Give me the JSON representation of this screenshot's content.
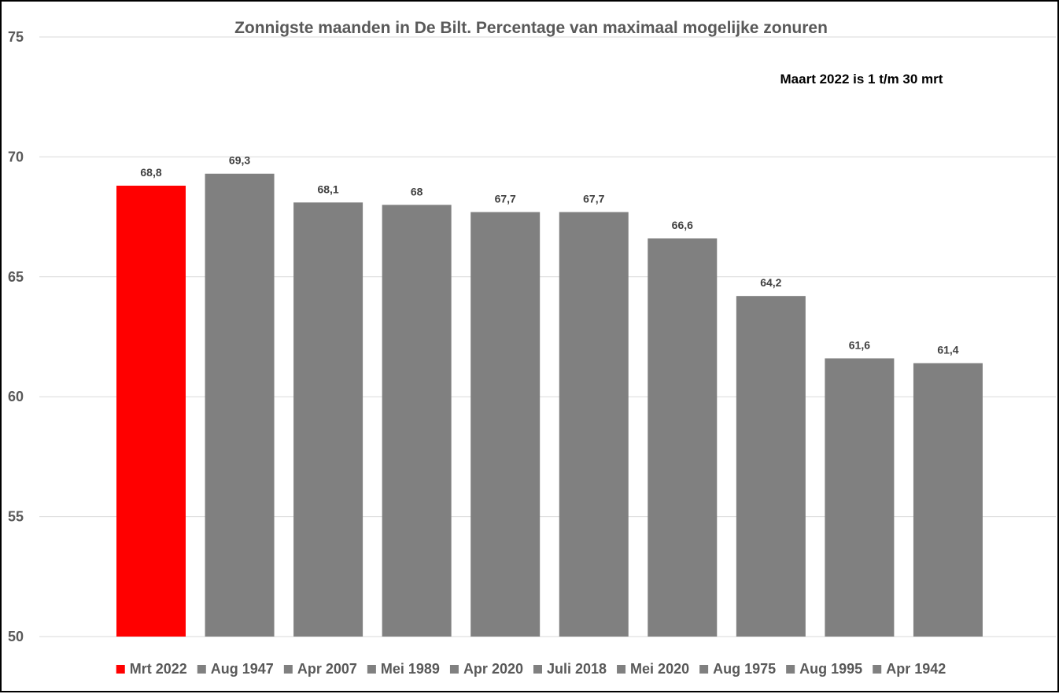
{
  "chart_data": {
    "type": "bar",
    "title": "Zonnigste maanden in De Bilt. Percentage van maximaal mogelijke zonuren",
    "annotation": "Maart 2022 is 1 t/m 30 mrt",
    "xlabel": "",
    "ylabel": "",
    "ylim": [
      50,
      75
    ],
    "yticks": [
      50,
      55,
      60,
      65,
      70,
      75
    ],
    "grid": true,
    "legend_position": "bottom",
    "categories": [
      "Mrt 2022",
      "Aug 1947",
      "Apr 2007",
      "Mei 1989",
      "Apr 2020",
      "Juli 2018",
      "Mei 2020",
      "Aug 1975",
      "Aug 1995",
      "Apr 1942"
    ],
    "values": [
      68.8,
      69.3,
      68.1,
      68,
      67.7,
      67.7,
      66.6,
      64.2,
      61.6,
      61.4
    ],
    "value_labels": [
      "68,8",
      "69,3",
      "68,1",
      "68",
      "67,7",
      "67,7",
      "66,6",
      "64,2",
      "61,6",
      "61,4"
    ],
    "colors": [
      "#ff0000",
      "#808080",
      "#808080",
      "#808080",
      "#808080",
      "#808080",
      "#808080",
      "#808080",
      "#808080",
      "#808080"
    ]
  }
}
